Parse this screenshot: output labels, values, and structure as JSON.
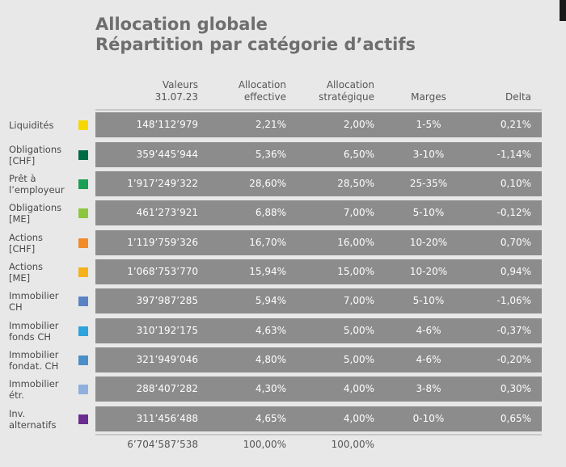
{
  "title": {
    "line1": "Allocation globale",
    "line2": "Répartition par catégorie d’actifs"
  },
  "headers": {
    "valeurs_1": "Valeurs",
    "valeurs_2": "31.07.23",
    "effective_1": "Allocation",
    "effective_2": "effective",
    "strategique_1": "Allocation",
    "strategique_2": "stratégique",
    "marges": "Marges",
    "delta": "Delta"
  },
  "rows": [
    {
      "l1": "Liquidités",
      "l2": "",
      "color": "#f5d800",
      "valeur": "148’112’979",
      "effective": "2,21%",
      "strategique": "2,00%",
      "marges": "1-5%",
      "delta": "0,21%"
    },
    {
      "l1": "Obligations",
      "l2": "[CHF]",
      "color": "#006b45",
      "valeur": "359’445’944",
      "effective": "5,36%",
      "strategique": "6,50%",
      "marges": "3-10%",
      "delta": "-1,14%"
    },
    {
      "l1": "Prêt à",
      "l2": "l’employeur",
      "color": "#1aa053",
      "valeur": "1’917’249’322",
      "effective": "28,60%",
      "strategique": "28,50%",
      "marges": "25-35%",
      "delta": "0,10%"
    },
    {
      "l1": "Obligations",
      "l2": "[ME]",
      "color": "#8cc63f",
      "valeur": "461’273’921",
      "effective": "6,88%",
      "strategique": "7,00%",
      "marges": "5-10%",
      "delta": "-0,12%"
    },
    {
      "l1": "Actions",
      "l2": "[CHF]",
      "color": "#f28c28",
      "valeur": "1’119’759’326",
      "effective": "16,70%",
      "strategique": "16,00%",
      "marges": "10-20%",
      "delta": "0,70%"
    },
    {
      "l1": "Actions",
      "l2": "[ME]",
      "color": "#f7b21b",
      "valeur": "1’068’753’770",
      "effective": "15,94%",
      "strategique": "15,00%",
      "marges": "10-20%",
      "delta": "0,94%"
    },
    {
      "l1": "Immobilier",
      "l2": "CH",
      "color": "#5b83c4",
      "valeur": "397’987’285",
      "effective": "5,94%",
      "strategique": "7,00%",
      "marges": "5-10%",
      "delta": "-1,06%"
    },
    {
      "l1": "Immobilier",
      "l2": "fonds CH",
      "color": "#2ea3dc",
      "valeur": "310’192’175",
      "effective": "4,63%",
      "strategique": "5,00%",
      "marges": "4-6%",
      "delta": "-0,37%"
    },
    {
      "l1": "Immobilier",
      "l2": "fondat. CH",
      "color": "#4a8fc9",
      "valeur": "321’949’046",
      "effective": "4,80%",
      "strategique": "5,00%",
      "marges": "4-6%",
      "delta": "-0,20%"
    },
    {
      "l1": "Immobilier",
      "l2": "étr.",
      "color": "#8fb0dc",
      "valeur": "288’407’282",
      "effective": "4,30%",
      "strategique": "4,00%",
      "marges": "3-8%",
      "delta": "0,30%"
    },
    {
      "l1": "Inv.",
      "l2": "alternatifs",
      "color": "#6a2c91",
      "valeur": "311’456’488",
      "effective": "4,65%",
      "strategique": "4,00%",
      "marges": "0-10%",
      "delta": "0,65%"
    }
  ],
  "totals": {
    "valeur": "6’704’587’538",
    "effective": "100,00%",
    "strategique": "100,00%"
  }
}
